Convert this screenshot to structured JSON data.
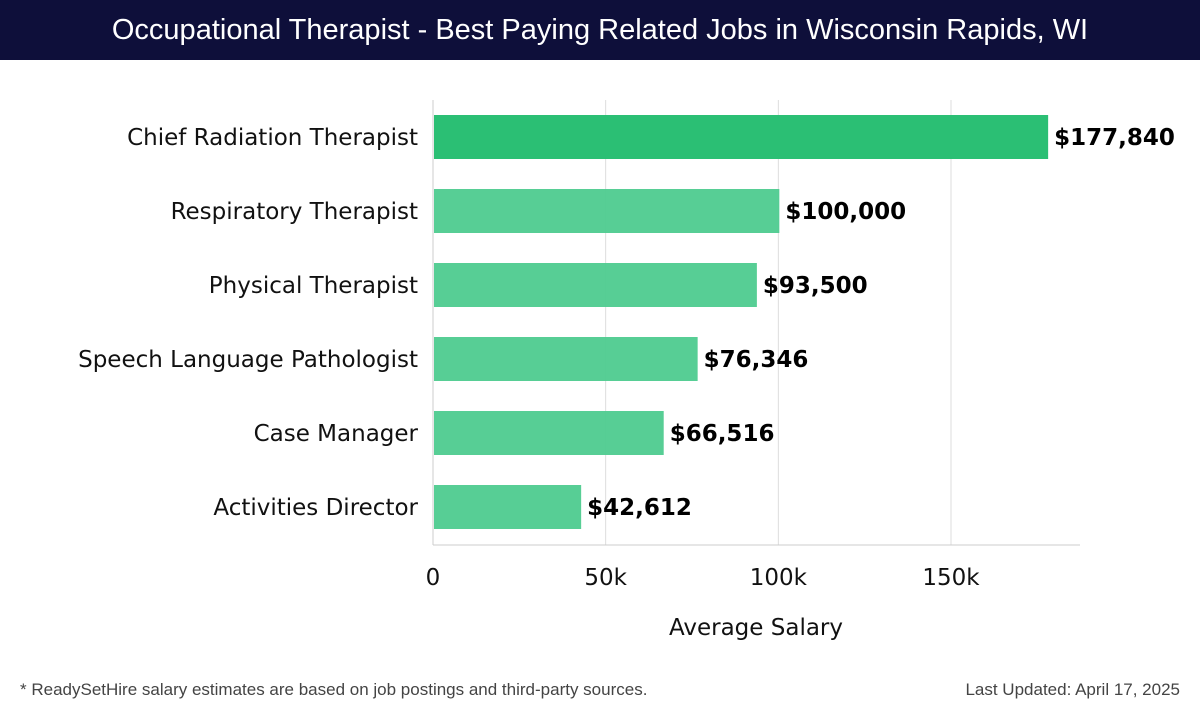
{
  "header": {
    "title": "Occupational Therapist - Best Paying Related Jobs in Wisconsin Rapids, WI"
  },
  "chart_data": {
    "type": "bar",
    "orientation": "horizontal",
    "title": "Occupational Therapist - Best Paying Related Jobs in Wisconsin Rapids, WI",
    "categories": [
      "Chief Radiation Therapist",
      "Respiratory Therapist",
      "Physical Therapist",
      "Speech Language Pathologist",
      "Case Manager",
      "Activities Director"
    ],
    "values": [
      177840,
      100000,
      93500,
      76346,
      66516,
      42612
    ],
    "value_labels": [
      "$177,840",
      "$100,000",
      "$93,500",
      "$76,346",
      "$66,516",
      "$42,612"
    ],
    "xlabel": "Average Salary",
    "ylabel": "",
    "xlim": [
      0,
      187000
    ],
    "xticks": [
      0,
      50000,
      100000,
      150000
    ],
    "xtick_labels": [
      "0",
      "50k",
      "100k",
      "150k"
    ],
    "grid": "vertical",
    "colors": {
      "top_bar": "#2bbf74",
      "bar": "#4ecb8f",
      "grid": "#dddddd",
      "header_bg": "#0e0f3a"
    }
  },
  "footer": {
    "note": "* ReadySetHire salary estimates are based on job postings and third-party sources.",
    "updated": "Last Updated: April 17, 2025"
  }
}
